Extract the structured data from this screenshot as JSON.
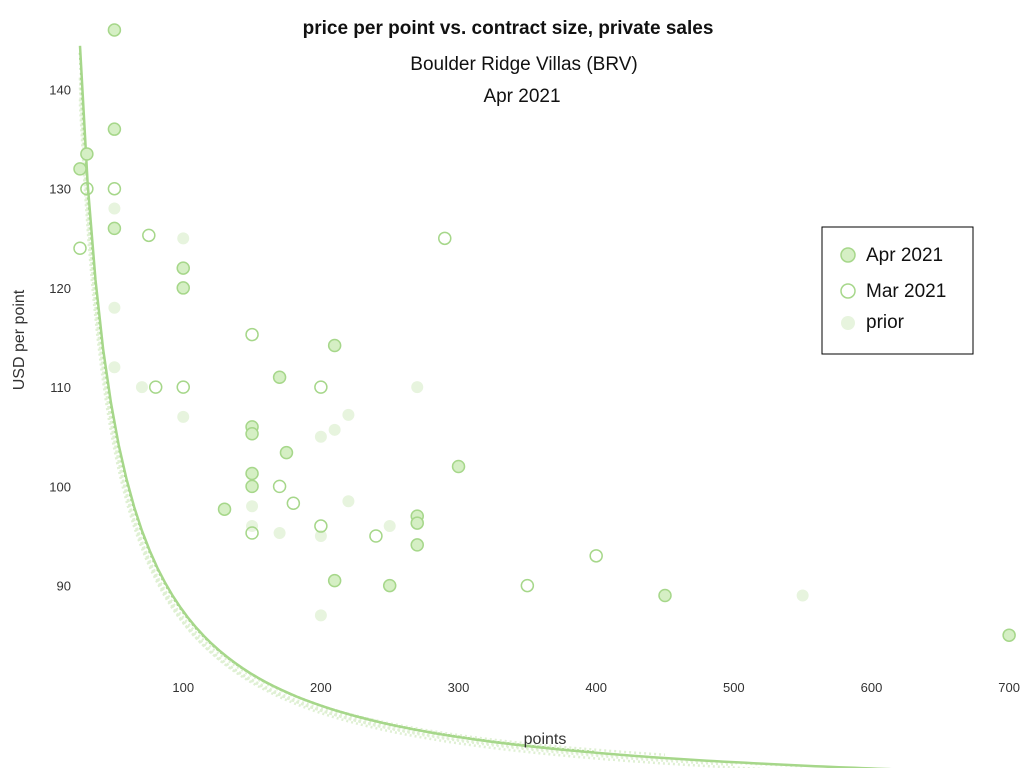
{
  "chart_data": {
    "type": "scatter",
    "title": "price per point vs. contract size, private sales",
    "subtitle_1": "Boulder Ridge Villas (BRV)",
    "subtitle_2": "Apr 2021",
    "xlabel": "points",
    "ylabel": "USD per point",
    "xlim": [
      25,
      705
    ],
    "ylim": [
      82.5,
      146.5
    ],
    "x_ticks": [
      100,
      200,
      300,
      400,
      500,
      600,
      700
    ],
    "y_ticks": [
      90,
      100,
      110,
      120,
      130,
      140
    ],
    "grid": false,
    "legend_position": "right",
    "colors": {
      "apr_fill": "#d5efc4",
      "apr_stroke": "#a6d78a",
      "mar_stroke": "#a6d78a",
      "prior_fill": "#e7f4de",
      "trend": "#a6d78a",
      "trend_prior": "#dff0d3"
    },
    "series": [
      {
        "name": "Apr 2021",
        "style": "filled",
        "points": [
          [
            50,
            146
          ],
          [
            50,
            136
          ],
          [
            50,
            126
          ],
          [
            25,
            132
          ],
          [
            30,
            133.5
          ],
          [
            100,
            122
          ],
          [
            100,
            120
          ],
          [
            150,
            106
          ],
          [
            150,
            105.3
          ],
          [
            170,
            111
          ],
          [
            210,
            114.2
          ],
          [
            130,
            97.7
          ],
          [
            150,
            101.3
          ],
          [
            150,
            100
          ],
          [
            175,
            103.4
          ],
          [
            270,
            97
          ],
          [
            270,
            96.3
          ],
          [
            270,
            94.1
          ],
          [
            300,
            102
          ],
          [
            250,
            90
          ],
          [
            210,
            90.5
          ],
          [
            450,
            89
          ],
          [
            700,
            85
          ]
        ],
        "trend": {
          "a": 68.4,
          "b": 1900,
          "x_range": [
            25,
            700
          ]
        }
      },
      {
        "name": "Mar 2021",
        "style": "hollow",
        "points": [
          [
            25,
            124
          ],
          [
            30,
            130
          ],
          [
            50,
            130
          ],
          [
            75,
            125.3
          ],
          [
            80,
            110
          ],
          [
            100,
            110
          ],
          [
            150,
            115.3
          ],
          [
            150,
            95.3
          ],
          [
            170,
            100
          ],
          [
            180,
            98.3
          ],
          [
            200,
            110
          ],
          [
            200,
            96
          ],
          [
            240,
            95
          ],
          [
            290,
            125
          ],
          [
            350,
            90
          ],
          [
            400,
            93
          ]
        ],
        "trend": {
          "a": 68.5,
          "b": 1880,
          "x_range": [
            25,
            400
          ]
        }
      },
      {
        "name": "prior",
        "style": "faint",
        "points": [
          [
            50,
            128
          ],
          [
            50,
            118
          ],
          [
            50,
            112
          ],
          [
            70,
            110
          ],
          [
            100,
            125
          ],
          [
            100,
            107
          ],
          [
            150,
            98
          ],
          [
            150,
            96
          ],
          [
            170,
            95.3
          ],
          [
            200,
            105
          ],
          [
            200,
            95
          ],
          [
            200,
            87
          ],
          [
            210,
            105.7
          ],
          [
            220,
            107.2
          ],
          [
            220,
            98.5
          ],
          [
            250,
            96
          ],
          [
            270,
            110
          ],
          [
            550,
            89
          ]
        ],
        "trend_lines": [
          {
            "a": 68.0,
            "b": 1830,
            "x_range": [
              25,
              550
            ]
          },
          {
            "a": 68.3,
            "b": 1820,
            "x_range": [
              25,
              500
            ]
          },
          {
            "a": 69.0,
            "b": 1780,
            "x_range": [
              25,
              450
            ]
          },
          {
            "a": 68.6,
            "b": 1760,
            "x_range": [
              25,
              550
            ]
          },
          {
            "a": 68.9,
            "b": 1740,
            "x_range": [
              25,
              400
            ]
          }
        ]
      }
    ],
    "legend": [
      {
        "label": "Apr 2021",
        "style": "filled"
      },
      {
        "label": "Mar 2021",
        "style": "hollow"
      },
      {
        "label": "prior",
        "style": "faint"
      }
    ]
  }
}
